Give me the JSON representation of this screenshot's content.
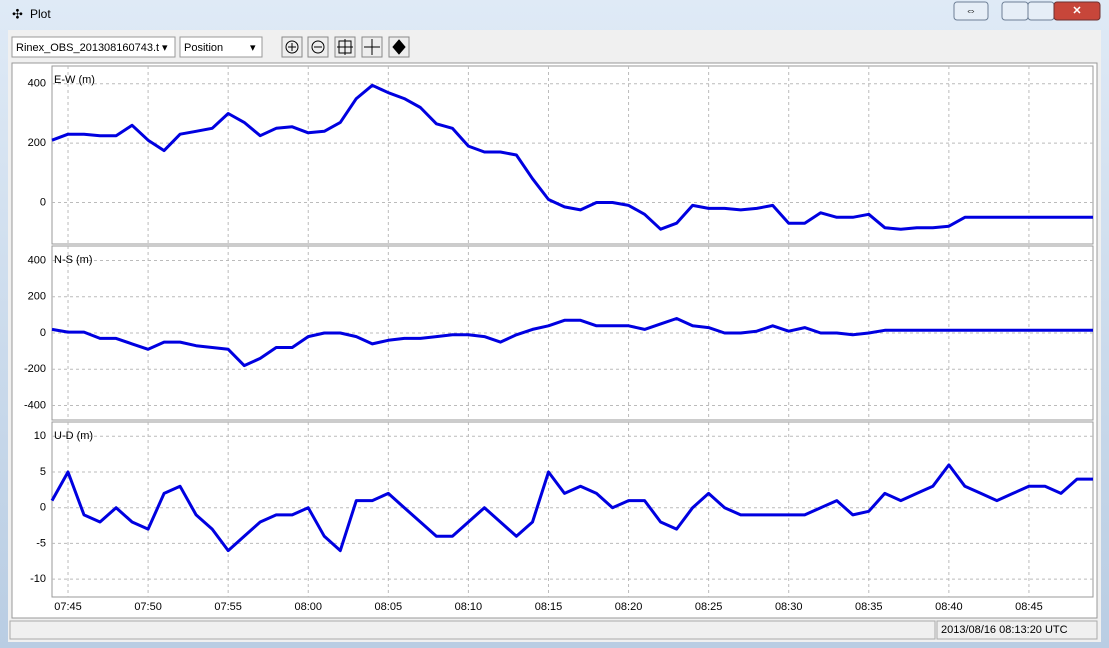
{
  "window": {
    "title": "Plot",
    "file_select": "Rinex_OBS_201308160743.t",
    "plot_select": "Position",
    "status": "2013/08/16 08:13:20 UTC"
  },
  "chart_data": [
    {
      "type": "line",
      "ylabel": "E-W (m)",
      "color": "#0000e0",
      "x": [
        "07:44",
        "07:45",
        "07:46",
        "07:47",
        "07:48",
        "07:49",
        "07:50",
        "07:51",
        "07:52",
        "07:53",
        "07:54",
        "07:55",
        "07:56",
        "07:57",
        "07:58",
        "07:59",
        "08:00",
        "08:01",
        "08:02",
        "08:03",
        "08:04",
        "08:05",
        "08:06",
        "08:07",
        "08:08",
        "08:09",
        "08:10",
        "08:11",
        "08:12",
        "08:13",
        "08:14",
        "08:15",
        "08:16",
        "08:17",
        "08:18",
        "08:19",
        "08:20",
        "08:21",
        "08:22",
        "08:23",
        "08:24",
        "08:25",
        "08:26",
        "08:27",
        "08:28",
        "08:29",
        "08:30",
        "08:31",
        "08:32",
        "08:33",
        "08:34",
        "08:35",
        "08:36",
        "08:37",
        "08:38",
        "08:39",
        "08:40",
        "08:41",
        "08:42",
        "08:43",
        "08:44",
        "08:45",
        "08:46",
        "08:47",
        "08:48",
        "08:49"
      ],
      "values": [
        210,
        230,
        230,
        225,
        225,
        260,
        210,
        175,
        230,
        240,
        250,
        300,
        270,
        225,
        250,
        255,
        235,
        240,
        270,
        350,
        395,
        370,
        350,
        320,
        265,
        250,
        190,
        170,
        170,
        160,
        80,
        10,
        -15,
        -25,
        0,
        0,
        -10,
        -40,
        -90,
        -70,
        -10,
        -20,
        -20,
        -25,
        -20,
        -10,
        -70,
        -70,
        -35,
        -50,
        -50,
        -40,
        -85,
        -90,
        -85,
        -85,
        -80,
        -50,
        -50,
        -50,
        -50,
        -50,
        -50,
        -50,
        -50,
        -50
      ],
      "xlim": [
        "07:44",
        "08:49"
      ],
      "ylim": [
        -140,
        460
      ],
      "yticks": [
        0,
        200,
        400
      ],
      "grid": true
    },
    {
      "type": "line",
      "ylabel": "N-S (m)",
      "color": "#0000e0",
      "x": [
        "07:44",
        "07:45",
        "07:46",
        "07:47",
        "07:48",
        "07:49",
        "07:50",
        "07:51",
        "07:52",
        "07:53",
        "07:54",
        "07:55",
        "07:56",
        "07:57",
        "07:58",
        "07:59",
        "08:00",
        "08:01",
        "08:02",
        "08:03",
        "08:04",
        "08:05",
        "08:06",
        "08:07",
        "08:08",
        "08:09",
        "08:10",
        "08:11",
        "08:12",
        "08:13",
        "08:14",
        "08:15",
        "08:16",
        "08:17",
        "08:18",
        "08:19",
        "08:20",
        "08:21",
        "08:22",
        "08:23",
        "08:24",
        "08:25",
        "08:26",
        "08:27",
        "08:28",
        "08:29",
        "08:30",
        "08:31",
        "08:32",
        "08:33",
        "08:34",
        "08:35",
        "08:36",
        "08:37",
        "08:38",
        "08:39",
        "08:40",
        "08:41",
        "08:42",
        "08:43",
        "08:44",
        "08:45",
        "08:46",
        "08:47",
        "08:48",
        "08:49"
      ],
      "values": [
        20,
        5,
        5,
        -30,
        -30,
        -60,
        -90,
        -50,
        -50,
        -70,
        -80,
        -90,
        -180,
        -140,
        -80,
        -80,
        -20,
        0,
        0,
        -20,
        -60,
        -40,
        -30,
        -30,
        -20,
        -10,
        -10,
        -20,
        -50,
        -10,
        20,
        40,
        70,
        70,
        40,
        40,
        40,
        20,
        50,
        80,
        40,
        30,
        0,
        0,
        10,
        40,
        10,
        30,
        0,
        0,
        -10,
        0,
        15,
        15,
        15,
        15,
        15,
        15,
        15,
        15,
        15,
        15,
        15,
        15,
        15,
        15
      ],
      "xlim": [
        "07:44",
        "08:49"
      ],
      "ylim": [
        -480,
        480
      ],
      "yticks": [
        -400,
        -200,
        0,
        200,
        400
      ],
      "grid": true
    },
    {
      "type": "line",
      "ylabel": "U-D (m)",
      "color": "#0000e0",
      "x": [
        "07:44",
        "07:45",
        "07:46",
        "07:47",
        "07:48",
        "07:49",
        "07:50",
        "07:51",
        "07:52",
        "07:53",
        "07:54",
        "07:55",
        "07:56",
        "07:57",
        "07:58",
        "07:59",
        "08:00",
        "08:01",
        "08:02",
        "08:03",
        "08:04",
        "08:05",
        "08:06",
        "08:07",
        "08:08",
        "08:09",
        "08:10",
        "08:11",
        "08:12",
        "08:13",
        "08:14",
        "08:15",
        "08:16",
        "08:17",
        "08:18",
        "08:19",
        "08:20",
        "08:21",
        "08:22",
        "08:23",
        "08:24",
        "08:25",
        "08:26",
        "08:27",
        "08:28",
        "08:29",
        "08:30",
        "08:31",
        "08:32",
        "08:33",
        "08:34",
        "08:35",
        "08:36",
        "08:37",
        "08:38",
        "08:39",
        "08:40",
        "08:41",
        "08:42",
        "08:43",
        "08:44",
        "08:45",
        "08:46",
        "08:47",
        "08:48",
        "08:49"
      ],
      "values": [
        1,
        5,
        -1,
        -2,
        0,
        -2,
        -3,
        2,
        3,
        -1,
        -3,
        -6,
        -4,
        -2,
        -1,
        -1,
        0,
        -4,
        -6,
        1,
        1,
        2,
        0,
        -2,
        -4,
        -4,
        -2,
        0,
        -2,
        -4,
        -2,
        5,
        2,
        3,
        2,
        0,
        1,
        1,
        -2,
        -3,
        0,
        2,
        0,
        -1,
        -1,
        -1,
        -1,
        -1,
        0,
        1,
        -1,
        -0.5,
        2,
        1,
        2,
        3,
        6,
        3,
        2,
        1,
        2,
        3,
        3,
        2,
        4,
        4
      ],
      "xlim": [
        "07:44",
        "08:49"
      ],
      "ylim": [
        -12.5,
        12
      ],
      "yticks": [
        -10,
        -5,
        0,
        5,
        10
      ],
      "xticks": [
        "07:45",
        "07:50",
        "07:55",
        "08:00",
        "08:05",
        "08:10",
        "08:15",
        "08:20",
        "08:25",
        "08:30",
        "08:35",
        "08:40",
        "08:45"
      ],
      "grid": true
    }
  ]
}
